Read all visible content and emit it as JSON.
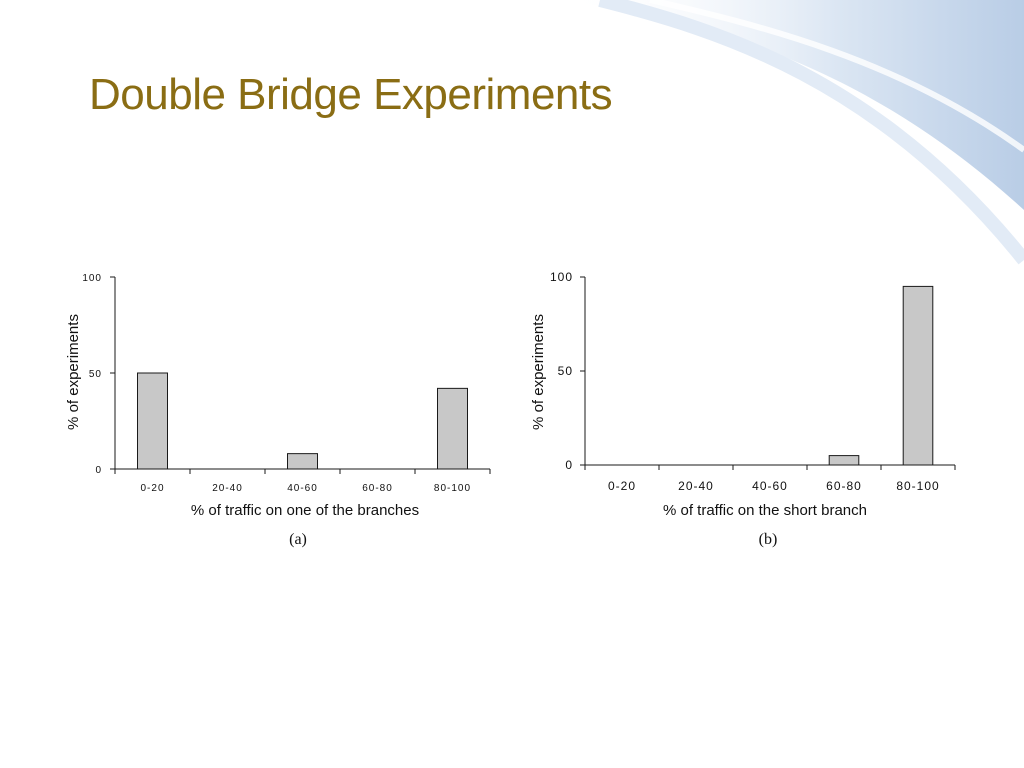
{
  "slide": {
    "title": "Double Bridge Experiments"
  },
  "chart_data": [
    {
      "type": "bar",
      "categories": [
        "0-20",
        "20-40",
        "40-60",
        "60-80",
        "80-100"
      ],
      "values": [
        50,
        0,
        8,
        0,
        42
      ],
      "xlabel": "% of traffic on one of the branches",
      "ylabel": "% of experiments",
      "yticks": [
        0,
        50,
        100
      ],
      "ylim": [
        0,
        100
      ],
      "caption": "(a)",
      "grid": false,
      "bar_color": "#c8c8c8"
    },
    {
      "type": "bar",
      "categories": [
        "0-20",
        "20-40",
        "40-60",
        "60-80",
        "80-100"
      ],
      "values": [
        0,
        0,
        0,
        5,
        95
      ],
      "xlabel": "% of traffic on the short branch",
      "ylabel": "% of experiments",
      "yticks": [
        0,
        50,
        100
      ],
      "ylim": [
        0,
        100
      ],
      "caption": "(b)",
      "grid": false,
      "bar_color": "#c8c8c8"
    }
  ]
}
